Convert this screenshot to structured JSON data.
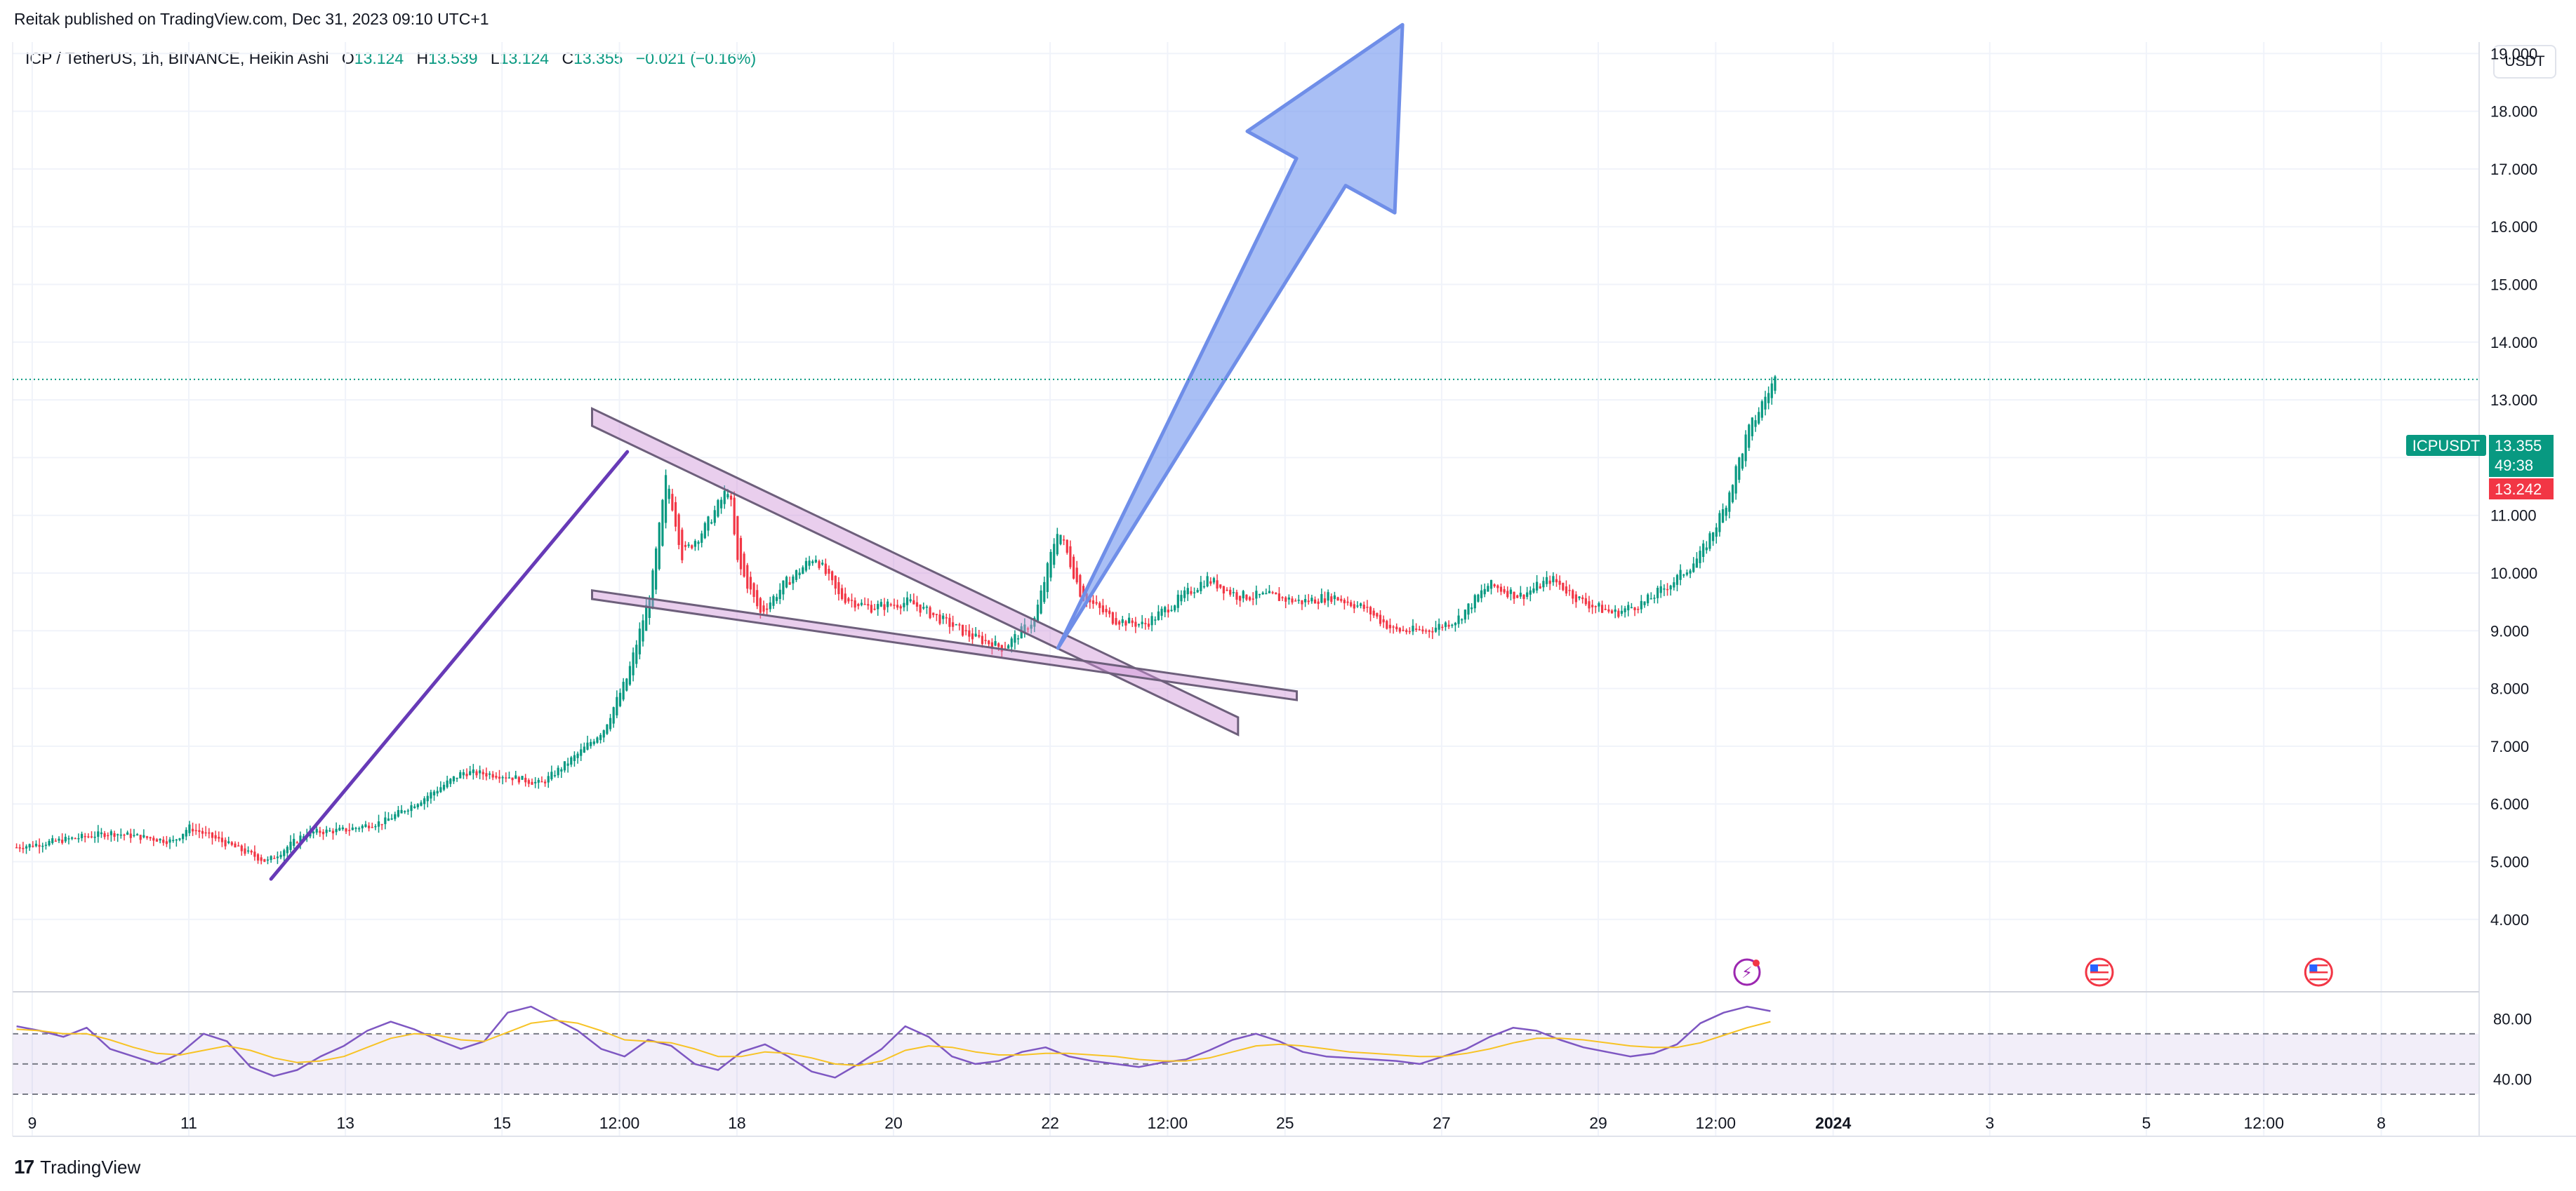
{
  "header": {
    "published": "Reitak published on TradingView.com, Dec 31, 2023 09:10 UTC+1"
  },
  "legend": {
    "symbol": "ICP / TetherUS, 1h, BINANCE, Heikin Ashi",
    "o_label": "O",
    "o_value": "13.124",
    "h_label": "H",
    "h_value": "13.539",
    "l_label": "L",
    "l_value": "13.124",
    "c_label": "C",
    "c_value": "13.355",
    "change": "−0.021 (−0.16%)"
  },
  "currency_button": "USDT",
  "price_tags": {
    "symbol_tag": "ICPUSDT",
    "last_price": "13.355",
    "countdown": "49:38",
    "other_price": "13.242"
  },
  "footer": {
    "brand": "TradingView"
  },
  "colors": {
    "up": "#089981",
    "down": "#f23645",
    "rsi": "#7e57c2",
    "rsi_ma": "#f7c325",
    "trend_line": "#673ab7",
    "wedge_fill": "#ce93d8",
    "wedge_stroke": "#6d5f7b",
    "arrow_fill": "#7b9cf0",
    "arrow_stroke": "#6f8ee8"
  },
  "chart_data": [
    {
      "type": "candlestick",
      "style": "Heikin Ashi",
      "symbol": "ICP / TetherUS",
      "interval": "1h",
      "exchange": "BINANCE",
      "y_axis_unit": "USDT",
      "ylim": [
        3.8,
        20.2
      ],
      "y_ticks": [
        "19.000",
        "18.000",
        "17.000",
        "16.000",
        "15.000",
        "14.000",
        "13.000",
        "12.000",
        "11.000",
        "10.000",
        "9.000",
        "8.000",
        "7.000",
        "6.000",
        "5.000",
        "4.000"
      ],
      "x_ticks": [
        "9",
        "11",
        "13",
        "15",
        "12:00",
        "18",
        "20",
        "22",
        "12:00",
        "25",
        "27",
        "29",
        "12:00",
        "2024",
        "3",
        "5",
        "12:00",
        "8"
      ],
      "x_tick_values": [
        9,
        11,
        13,
        15,
        16.5,
        18,
        20,
        22,
        23.5,
        25,
        27,
        29,
        30.5,
        32,
        34,
        36,
        37.5,
        39
      ],
      "x_range_days": [
        8.75,
        40.25
      ],
      "last_value": 13.355,
      "price_path": [
        [
          8.8,
          5.25
        ],
        [
          9.5,
          5.4
        ],
        [
          10.0,
          5.5
        ],
        [
          10.8,
          5.35
        ],
        [
          11.0,
          5.6
        ],
        [
          11.5,
          5.3
        ],
        [
          12.0,
          5.0
        ],
        [
          12.5,
          5.5
        ],
        [
          13.0,
          5.55
        ],
        [
          13.5,
          5.7
        ],
        [
          14.0,
          6.1
        ],
        [
          14.5,
          6.55
        ],
        [
          15.0,
          6.5
        ],
        [
          15.5,
          6.35
        ],
        [
          16.0,
          6.9
        ],
        [
          16.3,
          7.3
        ],
        [
          16.6,
          8.2
        ],
        [
          16.9,
          9.7
        ],
        [
          17.1,
          11.7
        ],
        [
          17.3,
          10.3
        ],
        [
          17.6,
          10.8
        ],
        [
          17.9,
          11.5
        ],
        [
          18.0,
          10.2
        ],
        [
          18.3,
          9.3
        ],
        [
          18.6,
          9.8
        ],
        [
          19.0,
          10.3
        ],
        [
          19.3,
          9.6
        ],
        [
          19.7,
          9.4
        ],
        [
          20.2,
          9.5
        ],
        [
          20.6,
          9.2
        ],
        [
          21.0,
          8.9
        ],
        [
          21.4,
          8.7
        ],
        [
          21.8,
          9.2
        ],
        [
          22.1,
          10.8
        ],
        [
          22.4,
          9.6
        ],
        [
          22.8,
          9.2
        ],
        [
          23.2,
          9.1
        ],
        [
          23.6,
          9.5
        ],
        [
          24.0,
          9.9
        ],
        [
          24.4,
          9.6
        ],
        [
          24.8,
          9.6
        ],
        [
          25.2,
          9.5
        ],
        [
          25.6,
          9.6
        ],
        [
          26.0,
          9.4
        ],
        [
          26.4,
          9.0
        ],
        [
          26.8,
          9.0
        ],
        [
          27.2,
          9.2
        ],
        [
          27.6,
          9.8
        ],
        [
          28.0,
          9.6
        ],
        [
          28.4,
          9.9
        ],
        [
          28.8,
          9.5
        ],
        [
          29.2,
          9.3
        ],
        [
          29.6,
          9.5
        ],
        [
          30.0,
          9.9
        ],
        [
          30.3,
          10.3
        ],
        [
          30.6,
          11.1
        ],
        [
          30.9,
          12.4
        ],
        [
          31.15,
          13.1
        ],
        [
          31.3,
          13.45
        ]
      ],
      "annotations": [
        {
          "type": "trend_line",
          "from": [
            12.05,
            4.7
          ],
          "to": [
            16.6,
            12.1
          ]
        },
        {
          "type": "channel_band",
          "upper_from": [
            16.15,
            12.85
          ],
          "upper_to": [
            24.4,
            7.5
          ],
          "lower_from": [
            16.15,
            12.55
          ],
          "lower_to": [
            24.4,
            7.2
          ]
        },
        {
          "type": "channel_band",
          "upper_from": [
            16.15,
            9.7
          ],
          "upper_to": [
            25.15,
            7.95
          ],
          "lower_from": [
            16.15,
            9.55
          ],
          "lower_to": [
            25.15,
            7.8
          ]
        },
        {
          "type": "arrow",
          "tail": [
            22.1,
            8.7
          ],
          "head": [
            26.5,
            19.5
          ]
        }
      ],
      "event_icons": [
        "lightning-icon",
        "us-flag-icon",
        "us-flag-icon"
      ]
    },
    {
      "type": "line",
      "panel": "RSI",
      "ylim": [
        30,
        95
      ],
      "y_ticks": [
        "80.00",
        "40.00"
      ],
      "bands": [
        70,
        50,
        30
      ],
      "series": [
        {
          "values": [
            75,
            72,
            68,
            74,
            60,
            55,
            50,
            57,
            70,
            65,
            48,
            42,
            46,
            55,
            62,
            72,
            78,
            73,
            66,
            60,
            65,
            84,
            88,
            80,
            72,
            60,
            55,
            66,
            62,
            50,
            46,
            58,
            63,
            55,
            45,
            41,
            50,
            60,
            75,
            68,
            55,
            50,
            52,
            58,
            61,
            55,
            52,
            50,
            48,
            51,
            53,
            59,
            66,
            70,
            65,
            58,
            55,
            54,
            53,
            52,
            50,
            55,
            60,
            68,
            74,
            72,
            66,
            61,
            58,
            55,
            57,
            63,
            77,
            84,
            88,
            85
          ]
        },
        {
          "values": [
            73,
            72,
            70,
            70,
            66,
            61,
            57,
            56,
            59,
            62,
            59,
            54,
            51,
            52,
            55,
            61,
            67,
            70,
            69,
            66,
            65,
            71,
            77,
            79,
            77,
            72,
            66,
            65,
            64,
            60,
            55,
            55,
            58,
            57,
            54,
            50,
            49,
            52,
            59,
            62,
            61,
            58,
            56,
            56,
            57,
            57,
            56,
            55,
            53,
            52,
            52,
            54,
            58,
            62,
            63,
            62,
            60,
            58,
            57,
            56,
            55,
            55,
            57,
            60,
            64,
            67,
            67,
            66,
            64,
            62,
            61,
            61,
            64,
            69,
            74,
            78
          ]
        }
      ]
    }
  ]
}
